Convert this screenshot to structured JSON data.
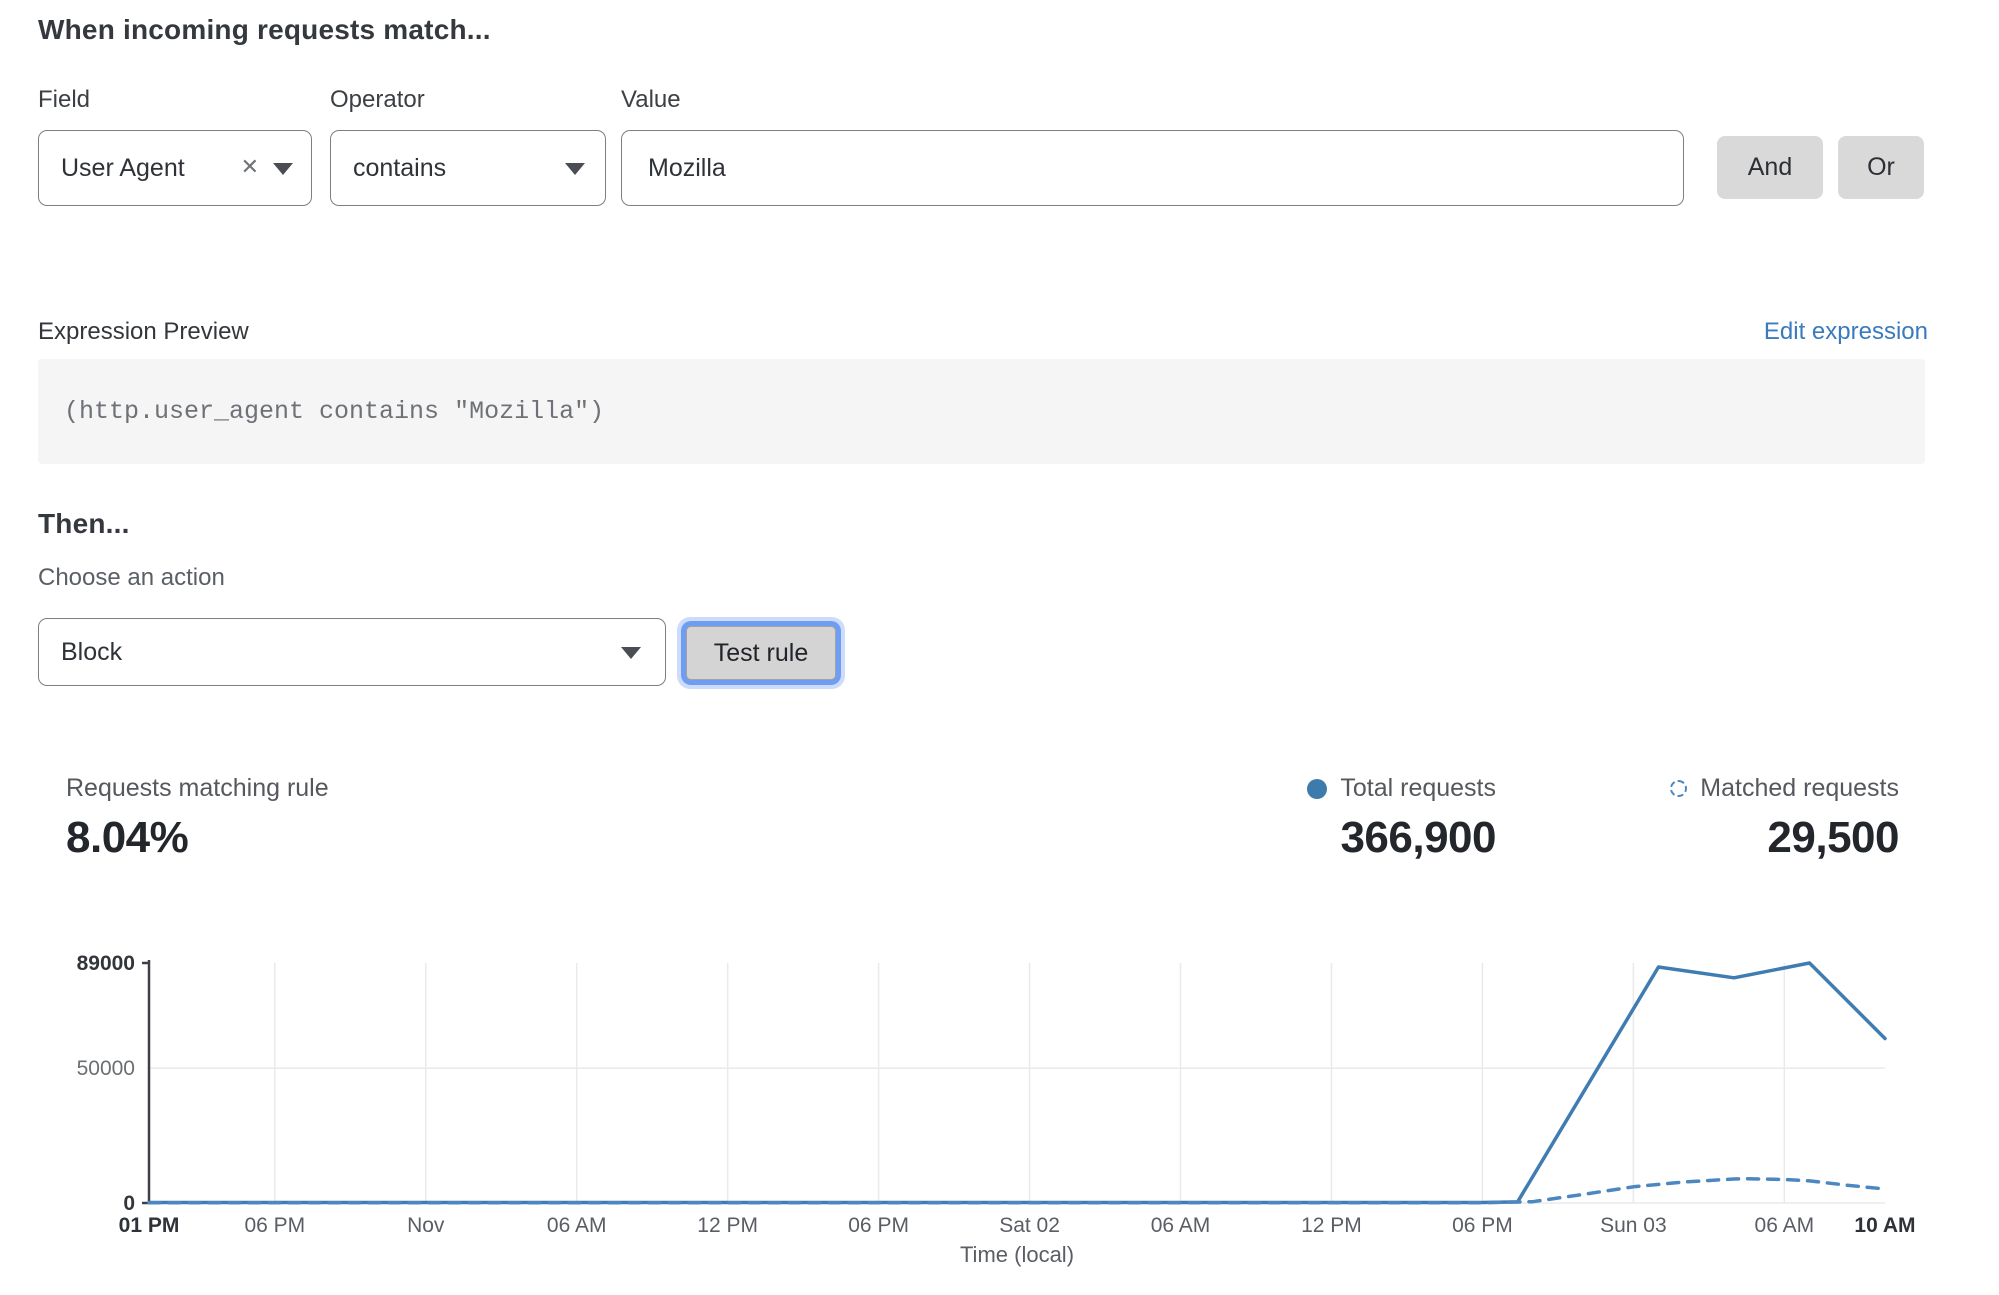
{
  "colors": {
    "chart_blue": "#3e7cb1",
    "chart_blue_dashed": "#4d87bf",
    "link_blue": "#3a7bbd",
    "legend_dot": "#3d7bad",
    "focus_ring": "#6f9df1"
  },
  "match_builder": {
    "heading": "When incoming requests match...",
    "field": {
      "label": "Field",
      "value": "User Agent",
      "clear_icon": "✕"
    },
    "operator": {
      "label": "Operator",
      "value": "contains"
    },
    "value": {
      "label": "Value",
      "value": "Mozilla"
    },
    "and_label": "And",
    "or_label": "Or"
  },
  "expression_preview": {
    "label": "Expression Preview",
    "edit_link": "Edit expression",
    "expression": "(http.user_agent contains \"Mozilla\")"
  },
  "then_section": {
    "heading": "Then...",
    "action_label": "Choose an action",
    "action_value": "Block",
    "test_button": "Test rule"
  },
  "stats": {
    "matching": {
      "label": "Requests matching rule",
      "value": "8.04%"
    },
    "total": {
      "label": "Total requests",
      "value": "366,900"
    },
    "matched": {
      "label": "Matched requests",
      "value": "29,500"
    }
  },
  "chart_data": {
    "type": "line",
    "xlabel": "Time (local)",
    "x_unit": "hours from Fri 01 PM",
    "ylim": [
      0,
      89000
    ],
    "grid": true,
    "legend_position": "above-right",
    "y_ticks": [
      {
        "value": 0,
        "label": "0",
        "bold": true
      },
      {
        "value": 50000,
        "label": "50000",
        "bold": false
      },
      {
        "value": 89000,
        "label": "89000",
        "bold": true
      }
    ],
    "x_ticks": [
      {
        "label": "01 PM",
        "h": 0,
        "bold": true
      },
      {
        "label": "06 PM",
        "h": 5
      },
      {
        "label": "Nov",
        "h": 11
      },
      {
        "label": "06 AM",
        "h": 17
      },
      {
        "label": "12 PM",
        "h": 23
      },
      {
        "label": "06 PM",
        "h": 29
      },
      {
        "label": "Sat 02",
        "h": 35
      },
      {
        "label": "06 AM",
        "h": 41
      },
      {
        "label": "12 PM",
        "h": 47
      },
      {
        "label": "06 PM",
        "h": 53
      },
      {
        "label": "Sun 03",
        "h": 59
      },
      {
        "label": "06 AM",
        "h": 65
      },
      {
        "label": "10 AM",
        "h": 69,
        "bold": true
      }
    ],
    "series": [
      {
        "name": "Total requests",
        "style": "solid",
        "color": "#3e7cb1",
        "points": [
          [
            0,
            200
          ],
          [
            5,
            200
          ],
          [
            11,
            200
          ],
          [
            17,
            200
          ],
          [
            23,
            200
          ],
          [
            29,
            200
          ],
          [
            35,
            200
          ],
          [
            41,
            200
          ],
          [
            47,
            200
          ],
          [
            53,
            200
          ],
          [
            54.4,
            400
          ],
          [
            60,
            87500
          ],
          [
            63,
            83500
          ],
          [
            66,
            89000
          ],
          [
            69,
            61000
          ]
        ]
      },
      {
        "name": "Matched requests",
        "style": "dashed",
        "color": "#4d87bf",
        "points": [
          [
            0,
            100
          ],
          [
            5,
            100
          ],
          [
            11,
            100
          ],
          [
            17,
            100
          ],
          [
            23,
            100
          ],
          [
            29,
            100
          ],
          [
            35,
            100
          ],
          [
            41,
            100
          ],
          [
            47,
            100
          ],
          [
            53,
            100
          ],
          [
            55,
            500
          ],
          [
            57,
            3200
          ],
          [
            59,
            6000
          ],
          [
            61,
            7800
          ],
          [
            63,
            8900
          ],
          [
            63.5,
            9000
          ],
          [
            65,
            8700
          ],
          [
            66,
            8200
          ],
          [
            67.5,
            6600
          ],
          [
            69,
            5200
          ]
        ]
      }
    ]
  }
}
